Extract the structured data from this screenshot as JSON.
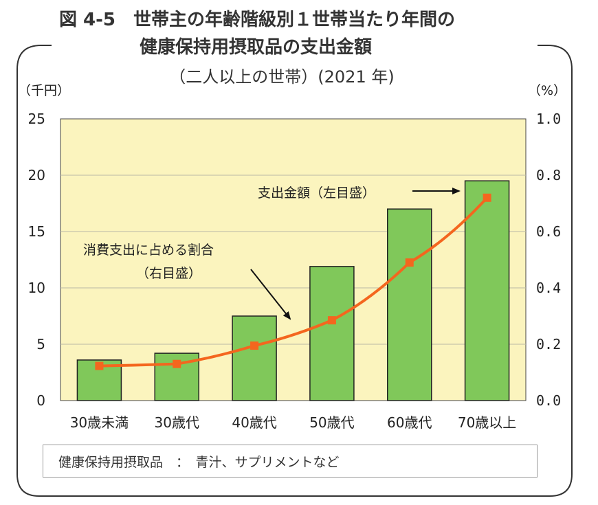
{
  "figure": {
    "title_line1": "図 4-5　世帯主の年齢階級別１世帯当たり年間の",
    "title_line2": "健康保持用摂取品の支出金額",
    "title_line3": "（二人以上の世帯）(2021 年)"
  },
  "note": "健康保持用摂取品　：　青汁、サプリメントなど",
  "colors": {
    "plot_bg": "#fbf4be",
    "bar_fill": "#80c85a",
    "line": "#f4661e",
    "grid": "#b8b8a6"
  },
  "chart_data": {
    "type": "bar",
    "categories": [
      "30歳未満",
      "30歳代",
      "40歳代",
      "50歳代",
      "60歳代",
      "70歳以上"
    ],
    "series": [
      {
        "name": "支出金額（左目盛）",
        "type": "bar",
        "axis": "left",
        "values": [
          3.6,
          4.2,
          7.5,
          11.9,
          17.0,
          19.5
        ]
      },
      {
        "name": "消費支出に占める割合（右目盛）",
        "type": "line",
        "axis": "right",
        "values": [
          0.123,
          0.13,
          0.195,
          0.285,
          0.49,
          0.72
        ]
      }
    ],
    "ylabel_left": "（千円）",
    "ylabel_right": "（%）",
    "ylim_left": [
      0,
      25
    ],
    "yticks_left": [
      "0",
      "5",
      "10",
      "15",
      "20",
      "25"
    ],
    "ylim_right": [
      0,
      1.0
    ],
    "yticks_right": [
      "0.0",
      "0.2",
      "0.4",
      "0.6",
      "0.8",
      "1.0"
    ],
    "grid": true,
    "annotations": {
      "bar_label": "支出金額（左目盛）",
      "line_label_1": "消費支出に占める割合",
      "line_label_2": "（右目盛）"
    }
  }
}
